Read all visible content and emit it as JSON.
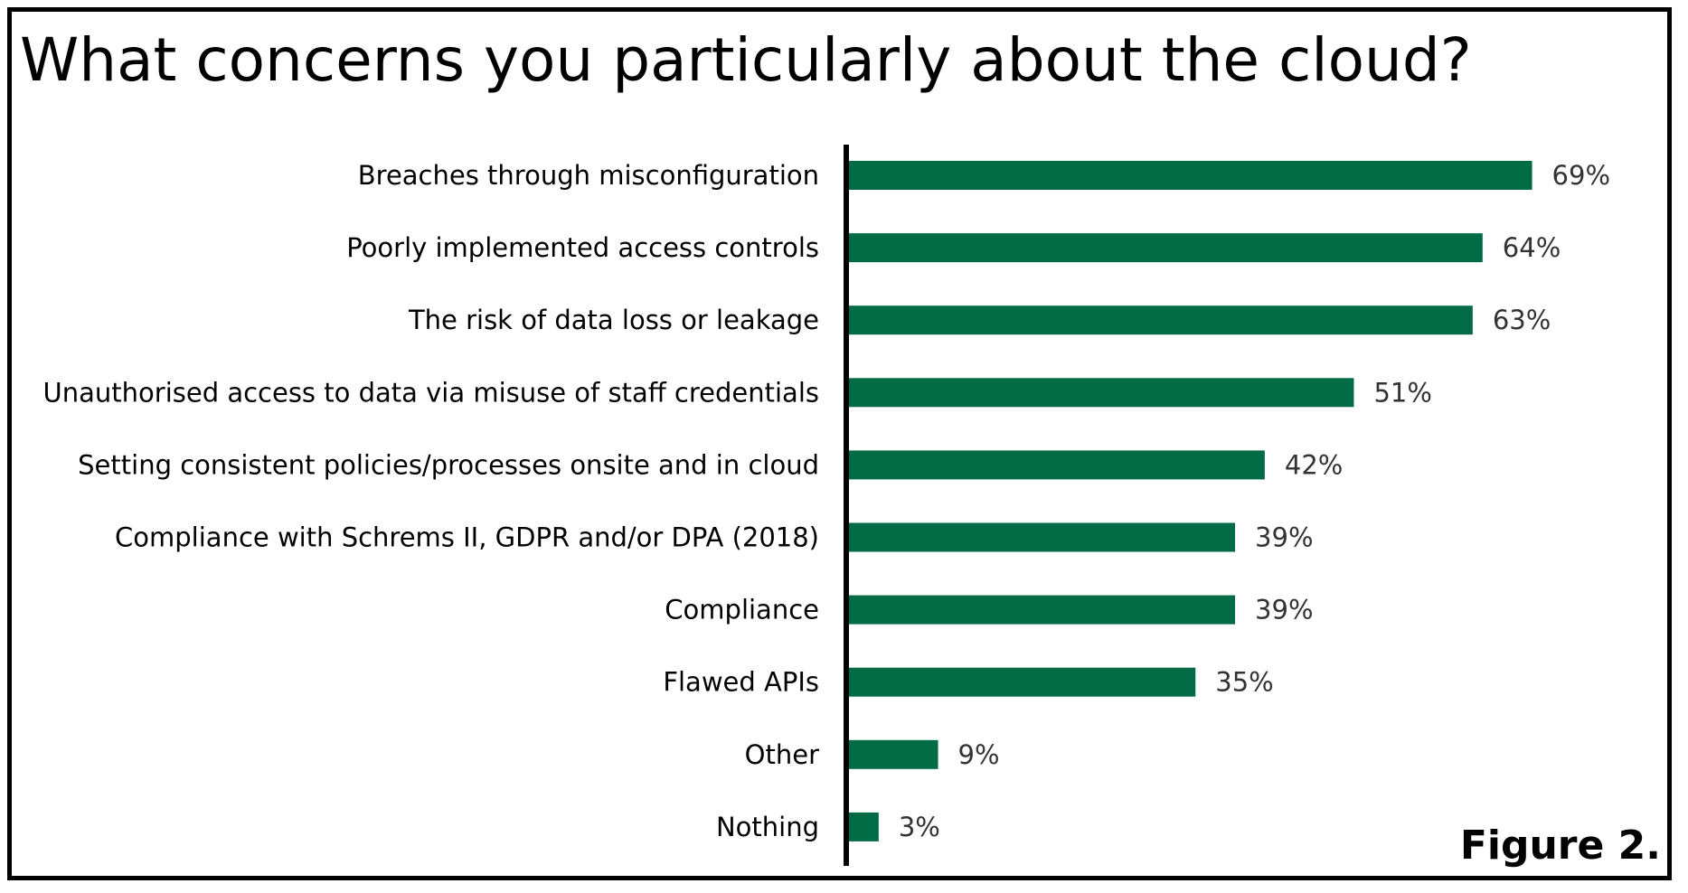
{
  "chart_data": {
    "type": "bar",
    "orientation": "horizontal",
    "title": "What concerns you particularly about the cloud?",
    "categories": [
      "Breaches through misconfiguration",
      "Poorly implemented access controls",
      "The risk of data loss or leakage",
      "Unauthorised access to data via misuse of staff credentials",
      "Setting consistent policies/processes onsite and in cloud",
      "Compliance with Schrems II, GDPR and/or DPA (2018)",
      "Compliance",
      "Flawed APIs",
      "Other",
      "Nothing"
    ],
    "values": [
      69,
      64,
      63,
      51,
      42,
      39,
      39,
      35,
      9,
      3
    ],
    "value_labels": [
      "69%",
      "64%",
      "63%",
      "51%",
      "42%",
      "39%",
      "39%",
      "35%",
      "9%",
      "3%"
    ],
    "xlabel": "",
    "ylabel": "",
    "xlim": [
      0,
      80
    ],
    "grid": false,
    "bar_color": "#006b45"
  },
  "figure_label": "Figure 2."
}
